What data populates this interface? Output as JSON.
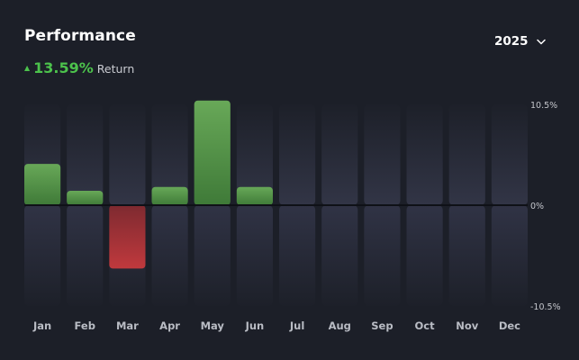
{
  "header": {
    "title": "Performance",
    "return_value": "13.59%",
    "return_label": "Return",
    "year": "2025"
  },
  "colors": {
    "background": "#1c1f28",
    "positive": "#5a9a4a",
    "negative": "#b5373b",
    "accent_green": "#4cc24c",
    "slot_top": "#323546",
    "slot_bottom": "#202330"
  },
  "chart_data": {
    "type": "bar",
    "title": "Performance",
    "categories": [
      "Jan",
      "Feb",
      "Mar",
      "Apr",
      "May",
      "Jun",
      "Jul",
      "Aug",
      "Sep",
      "Oct",
      "Nov",
      "Dec"
    ],
    "values": [
      4.3,
      1.5,
      -6.6,
      1.9,
      10.9,
      1.9,
      null,
      null,
      null,
      null,
      null,
      null
    ],
    "ylim": [
      -10.5,
      10.5
    ],
    "yticks": [
      10.5,
      0,
      -10.5
    ],
    "ytick_labels": [
      "10.5%",
      "0%",
      "-10.5%"
    ],
    "xlabel": "",
    "ylabel": ""
  }
}
